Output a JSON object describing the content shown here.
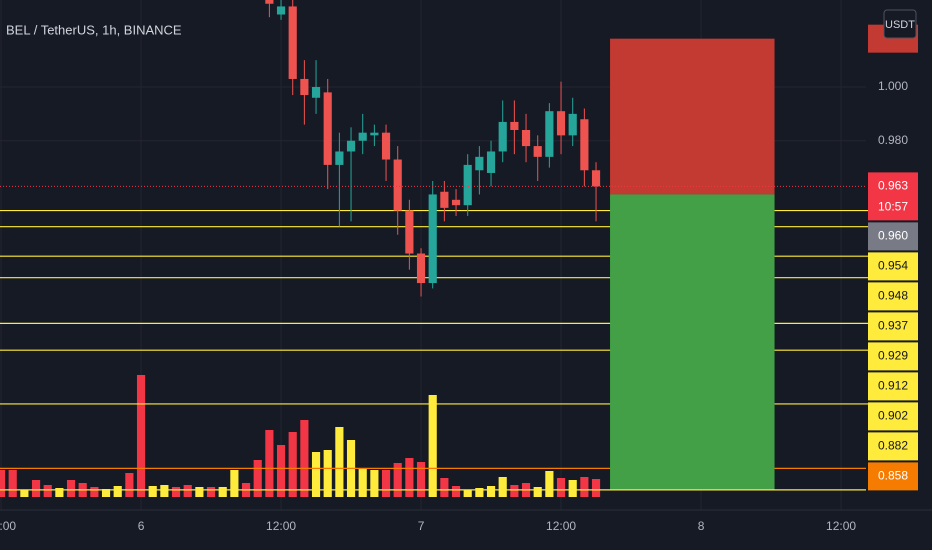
{
  "chart_data": {
    "type": "candlestick",
    "title": "BEL / TetherUS, 1h, BINANCE",
    "currency": "USDT",
    "x": [
      11,
      12,
      13,
      14,
      15,
      16,
      17,
      18,
      19,
      20,
      21,
      22,
      23,
      24,
      25,
      26,
      27,
      28,
      29,
      30,
      31,
      32,
      33,
      34,
      35,
      36,
      37,
      38,
      39
    ],
    "open": [
      1.034,
      1.027,
      1.03,
      1.003,
      0.996,
      0.998,
      0.971,
      0.976,
      0.98,
      0.982,
      0.983,
      0.973,
      0.954,
      0.938,
      0.927,
      0.961,
      0.958,
      0.956,
      0.969,
      0.968,
      0.976,
      0.987,
      0.984,
      0.978,
      0.974,
      0.991,
      0.982,
      0.988,
      0.969
    ],
    "high": [
      1.036,
      1.033,
      1.033,
      1.01,
      1.01,
      1.003,
      0.983,
      0.985,
      0.99,
      0.986,
      0.986,
      0.978,
      0.958,
      0.94,
      0.965,
      0.965,
      0.962,
      0.975,
      0.978,
      0.98,
      0.995,
      0.995,
      0.99,
      0.982,
      0.994,
      1.002,
      0.996,
      0.992,
      0.972
    ],
    "low": [
      1.026,
      1.025,
      0.997,
      0.986,
      0.99,
      0.962,
      0.948,
      0.95,
      0.975,
      0.978,
      0.965,
      0.945,
      0.932,
      0.922,
      0.925,
      0.95,
      0.952,
      0.952,
      0.96,
      0.963,
      0.972,
      0.975,
      0.972,
      0.965,
      0.97,
      0.975,
      0.978,
      0.963,
      0.95
    ],
    "close": [
      1.031,
      1.03,
      1.003,
      0.997,
      1.0,
      0.971,
      0.976,
      0.98,
      0.983,
      0.983,
      0.973,
      0.954,
      0.938,
      0.927,
      0.96,
      0.955,
      0.956,
      0.971,
      0.974,
      0.976,
      0.987,
      0.984,
      0.978,
      0.974,
      0.991,
      0.982,
      0.99,
      0.969,
      0.963
    ],
    "up_color": "#26a69a",
    "down_color": "#ef5350",
    "xlim": [
      -12.09,
      62.14
    ],
    "xticks": [
      {
        "value": -12,
        "label": "12:00"
      },
      {
        "value": 0,
        "label": "6"
      },
      {
        "value": 12,
        "label": "12:00"
      },
      {
        "value": 24,
        "label": "7"
      },
      {
        "value": 36,
        "label": "12:00"
      },
      {
        "value": 48,
        "label": "8"
      },
      {
        "value": 60,
        "label": "12:00"
      }
    ],
    "ylim": [
      0.8425,
      1.0324
    ],
    "yticks": [
      {
        "value": 1,
        "label": "1.000"
      },
      {
        "value": 0.98,
        "label": "0.980"
      }
    ],
    "grid": true,
    "volume": {
      "x": [
        -12,
        -11,
        -10,
        -9,
        -8,
        -7,
        -6,
        -5,
        -4,
        -3,
        -2,
        -1,
        0,
        1,
        2,
        3,
        4,
        5,
        6,
        7,
        8,
        9,
        10,
        11,
        12,
        13,
        14,
        15,
        16,
        17,
        18,
        19,
        20,
        21,
        22,
        23,
        24,
        25,
        26,
        27,
        28,
        29,
        30,
        31,
        32,
        33,
        34,
        35,
        36,
        37,
        38,
        39
      ],
      "values": [
        27,
        27,
        7,
        17,
        12,
        9,
        17,
        14,
        10,
        8,
        11,
        24,
        122,
        11,
        12,
        10,
        12,
        10,
        10,
        10,
        27,
        14,
        37,
        67,
        52,
        65,
        77,
        45,
        47,
        70,
        57,
        29,
        27,
        27,
        34,
        39,
        35,
        102,
        19,
        11,
        7,
        9,
        11,
        20,
        12,
        14,
        10,
        26,
        19,
        17,
        20,
        18
      ],
      "colors": [
        "#f23645",
        "#f23645",
        "#ffeb3b",
        "#f23645",
        "#f23645",
        "#ffeb3b",
        "#f23645",
        "#f23645",
        "#f23645",
        "#ffeb3b",
        "#ffeb3b",
        "#f23645",
        "#f23645",
        "#ffeb3b",
        "#ffeb3b",
        "#f23645",
        "#f23645",
        "#ffeb3b",
        "#f23645",
        "#ffeb3b",
        "#ffeb3b",
        "#f23645",
        "#f23645",
        "#f23645",
        "#f23645",
        "#f23645",
        "#f23645",
        "#ffeb3b",
        "#ffeb3b",
        "#ffeb3b",
        "#ffeb3b",
        "#ffeb3b",
        "#ffeb3b",
        "#f23645",
        "#f23645",
        "#f23645",
        "#f23645",
        "#ffeb3b",
        "#f23645",
        "#f23645",
        "#ffeb3b",
        "#ffeb3b",
        "#ffeb3b",
        "#ffeb3b",
        "#f23645",
        "#f23645",
        "#ffeb3b",
        "#ffeb3b",
        "#f23645",
        "#ffeb3b",
        "#f23645",
        "#f23645"
      ]
    },
    "vlim": [
      0,
      125
    ],
    "last_price": {
      "value": 0.963,
      "countdown": "10:57",
      "color": "#f23645"
    },
    "position": {
      "start": 40.2,
      "end": 54.3,
      "stop": 1.018,
      "entry": {
        "value": 0.96,
        "label": "0.960"
      },
      "target": 0.85,
      "loss_color": "#c23a31",
      "profit_color": "#43a047"
    },
    "levels": {
      "values": [
        0.954,
        0.948,
        0.937,
        0.929,
        0.912,
        0.902,
        0.882
      ],
      "color": "#ffeb3b"
    },
    "alert": {
      "value": 0.858,
      "color": "#f57c00"
    }
  }
}
